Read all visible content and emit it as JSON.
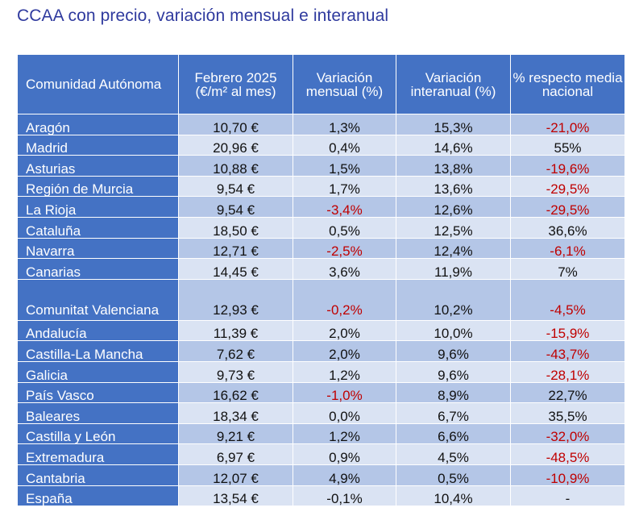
{
  "title": "CCAA con precio, variación mensual e interanual",
  "headers": {
    "region": "Comunidad Autónoma",
    "price": "Febrero 2025 (€/m² al mes)",
    "monthly": "Variación mensual (%)",
    "annual": "Variación interanual (%)",
    "vs_national": "% respecto media nacional"
  },
  "colors": {
    "header_bg": "#4472c4",
    "row_dark": "#b4c6e7",
    "row_light": "#dae3f3",
    "negative_text": "#c00000",
    "title_text": "#2f3a9e"
  },
  "rows": [
    {
      "region": "Aragón",
      "price": "10,70 €",
      "monthly": "1,3%",
      "annual": "15,3%",
      "vs_national": "-21,0%"
    },
    {
      "region": "Madrid",
      "price": "20,96 €",
      "monthly": "0,4%",
      "annual": "14,6%",
      "vs_national": "55%"
    },
    {
      "region": "Asturias",
      "price": "10,88 €",
      "monthly": "1,5%",
      "annual": "13,8%",
      "vs_national": "-19,6%"
    },
    {
      "region": "Región de Murcia",
      "price": "9,54 €",
      "monthly": "1,7%",
      "annual": "13,6%",
      "vs_national": "-29,5%"
    },
    {
      "region": "La Rioja",
      "price": "9,54 €",
      "monthly": "-3,4%",
      "annual": "12,6%",
      "vs_national": "-29,5%"
    },
    {
      "region": "Cataluña",
      "price": "18,50 €",
      "monthly": "0,5%",
      "annual": "12,5%",
      "vs_national": "36,6%"
    },
    {
      "region": "Navarra",
      "price": "12,71 €",
      "monthly": "-2,5%",
      "annual": "12,4%",
      "vs_national": "-6,1%"
    },
    {
      "region": "Canarias",
      "price": "14,45 €",
      "monthly": "3,6%",
      "annual": "11,9%",
      "vs_national": "7%"
    },
    {
      "region": "Comunitat Valenciana",
      "price": "12,93 €",
      "monthly": "-0,2%",
      "annual": "10,2%",
      "vs_national": "-4,5%"
    },
    {
      "region": "Andalucía",
      "price": "11,39 €",
      "monthly": "2,0%",
      "annual": "10,0%",
      "vs_national": "-15,9%"
    },
    {
      "region": "Castilla-La Mancha",
      "price": "7,62 €",
      "monthly": "2,0%",
      "annual": "9,6%",
      "vs_national": "-43,7%"
    },
    {
      "region": "Galicia",
      "price": "9,73 €",
      "monthly": "1,2%",
      "annual": "9,6%",
      "vs_national": "-28,1%"
    },
    {
      "region": "País Vasco",
      "price": "16,62 €",
      "monthly": "-1,0%",
      "annual": "8,9%",
      "vs_national": "22,7%"
    },
    {
      "region": "Baleares",
      "price": "18,34 €",
      "monthly": "0,0%",
      "annual": "6,7%",
      "vs_national": "35,5%"
    },
    {
      "region": "Castilla y León",
      "price": "9,21 €",
      "monthly": "1,2%",
      "annual": "6,6%",
      "vs_national": "-32,0%"
    },
    {
      "region": "Extremadura",
      "price": "6,97 €",
      "monthly": "0,9%",
      "annual": "4,5%",
      "vs_national": "-48,5%"
    },
    {
      "region": "Cantabria",
      "price": "12,07 €",
      "monthly": "4,9%",
      "annual": "0,5%",
      "vs_national": "-10,9%"
    },
    {
      "region": "España",
      "price": "13,54 €",
      "monthly": "-0,1%",
      "annual": "10,4%",
      "vs_national": "-"
    }
  ]
}
